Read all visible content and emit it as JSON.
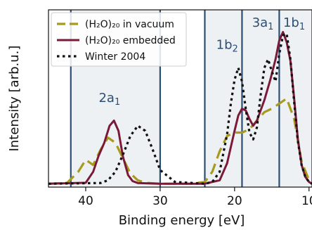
{
  "chart_data": {
    "type": "line",
    "xlabel": "Binding energy [eV]",
    "ylabel": "Intensity [arb.u.]",
    "xlim": [
      45,
      9.6
    ],
    "ylim": [
      -0.02,
      1.02
    ],
    "x_ticks": [
      40,
      30,
      20,
      10
    ],
    "x_tick_labels": [
      "40",
      "30",
      "20",
      "10"
    ],
    "legend": "top-left",
    "grid": false,
    "shaded_regions": [
      {
        "from": 42.0,
        "to": 30.0,
        "color": "#eef1f4"
      },
      {
        "from": 24.0,
        "to": 9.6,
        "color": "#eef1f4"
      }
    ],
    "vertical_lines": [
      42.0,
      30.0,
      24.0,
      19.0,
      14.0
    ],
    "orbital_labels": [
      {
        "main": "2a",
        "sub": "1",
        "x": 36.8,
        "y": 0.48
      },
      {
        "main": "1b",
        "sub": "2",
        "x": 21.0,
        "y": 0.79
      },
      {
        "main": "3a",
        "sub": "1",
        "x": 16.2,
        "y": 0.92
      },
      {
        "main": "1b",
        "sub": "1",
        "x": 12.0,
        "y": 0.92
      }
    ],
    "series": [
      {
        "name": "(H₂O)₂₀ in vacuum",
        "color": "#a89a1c",
        "style": "dashed",
        "x": [
          45,
          42.5,
          41,
          40,
          39,
          38,
          37,
          36,
          35,
          34,
          33,
          32,
          30,
          26,
          24,
          23,
          22,
          21,
          20,
          19,
          18,
          17,
          16,
          15,
          14,
          13,
          12,
          11,
          10,
          9.6
        ],
        "y": [
          0,
          0.005,
          0.07,
          0.14,
          0.11,
          0.2,
          0.27,
          0.24,
          0.15,
          0.06,
          0.02,
          0.005,
          0,
          0,
          0.01,
          0.07,
          0.19,
          0.28,
          0.3,
          0.3,
          0.32,
          0.37,
          0.42,
          0.44,
          0.47,
          0.5,
          0.38,
          0.13,
          0.02,
          0
        ]
      },
      {
        "name": "(H₂O)₂₀ embedded",
        "color": "#7b1a38",
        "style": "solid",
        "x": [
          45,
          40,
          39,
          38.3,
          37.5,
          36.8,
          36.2,
          35.6,
          35,
          34.3,
          33.7,
          33,
          30,
          24,
          22,
          21,
          20,
          19.5,
          19,
          18.5,
          18,
          17.5,
          17,
          16,
          15.2,
          14.5,
          14,
          13.5,
          13,
          12.5,
          12,
          11.5,
          11,
          10.5,
          10,
          9.6
        ],
        "y": [
          0,
          0.005,
          0.07,
          0.16,
          0.24,
          0.34,
          0.37,
          0.31,
          0.16,
          0.05,
          0.015,
          0.004,
          0,
          0,
          0.02,
          0.12,
          0.31,
          0.4,
          0.44,
          0.43,
          0.38,
          0.34,
          0.37,
          0.49,
          0.61,
          0.73,
          0.84,
          0.89,
          0.83,
          0.72,
          0.5,
          0.26,
          0.11,
          0.04,
          0.01,
          0
        ]
      },
      {
        "name": "Winter 2004",
        "color": "#111111",
        "style": "dotted",
        "x": [
          45,
          38,
          37,
          36,
          35,
          34,
          33,
          32,
          31,
          30,
          28,
          24,
          23,
          22,
          21,
          20.5,
          20,
          19.5,
          19,
          18.5,
          18,
          17.5,
          17,
          16.5,
          16,
          15.5,
          15,
          14.5,
          14,
          13.5,
          13,
          12.5,
          12,
          11.5,
          11,
          10.5,
          10,
          9.6
        ],
        "y": [
          0,
          0.004,
          0.02,
          0.07,
          0.17,
          0.28,
          0.34,
          0.31,
          0.2,
          0.08,
          0.01,
          0,
          0.01,
          0.07,
          0.29,
          0.47,
          0.61,
          0.68,
          0.6,
          0.44,
          0.3,
          0.26,
          0.33,
          0.52,
          0.68,
          0.73,
          0.66,
          0.6,
          0.76,
          0.87,
          0.88,
          0.73,
          0.48,
          0.25,
          0.11,
          0.04,
          0.01,
          0
        ]
      }
    ]
  }
}
